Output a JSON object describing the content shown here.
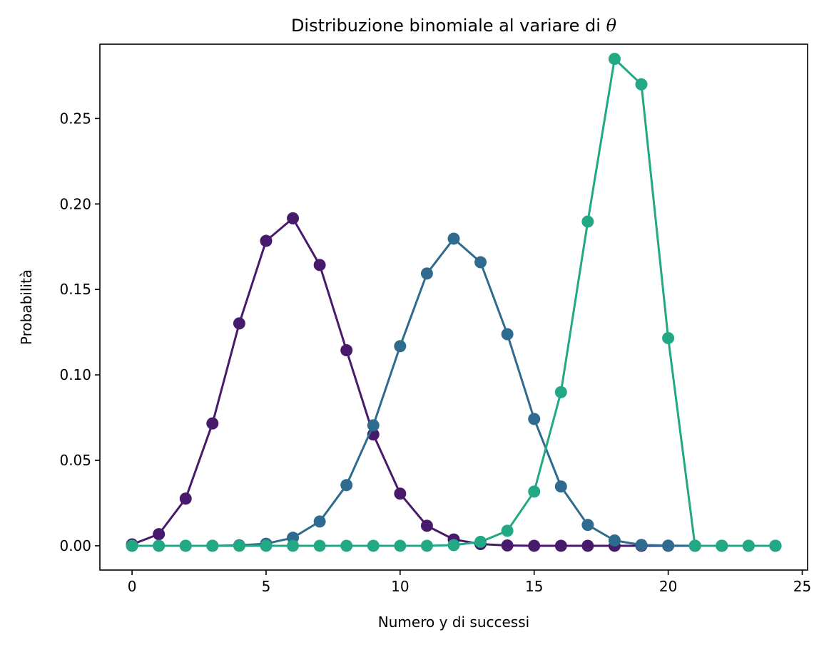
{
  "chart_data": {
    "type": "line",
    "title": "Distribuzione binomiale al variare di",
    "title_symbol": "θ",
    "xlabel": "Numero y di successi",
    "ylabel": "Probabilità",
    "xlim": [
      -1.2,
      25.2
    ],
    "ylim": [
      -0.0142,
      0.2935
    ],
    "x_ticks": [
      0,
      5,
      10,
      15,
      20,
      25
    ],
    "y_ticks": [
      0.0,
      0.05,
      0.1,
      0.15,
      0.2,
      0.25
    ],
    "x_tick_labels": [
      "0",
      "5",
      "10",
      "15",
      "20",
      "25"
    ],
    "y_tick_labels": [
      "0.00",
      "0.05",
      "0.10",
      "0.15",
      "0.20",
      "0.25"
    ],
    "grid": false,
    "legend": "none",
    "x": [
      0,
      1,
      2,
      3,
      4,
      5,
      6,
      7,
      8,
      9,
      10,
      11,
      12,
      13,
      14,
      15,
      16,
      17,
      18,
      19,
      20,
      21,
      22,
      23,
      24
    ],
    "series": [
      {
        "color": "#481a6c",
        "values": [
          0.0008,
          0.0068,
          0.0276,
          0.0716,
          0.1301,
          0.1784,
          0.1916,
          0.1643,
          0.1144,
          0.0651,
          0.0305,
          0.0117,
          0.0037,
          0.001,
          0.0002,
          0.0,
          0.0,
          0.0,
          0.0,
          0.0,
          0.0,
          0.0,
          0.0,
          0.0,
          0.0
        ]
      },
      {
        "color": "#2f6b8e",
        "values": [
          0.0,
          0.0,
          0.0,
          0.0,
          0.0003,
          0.0012,
          0.0047,
          0.0142,
          0.0355,
          0.0705,
          0.1168,
          0.1593,
          0.1797,
          0.1659,
          0.1238,
          0.0742,
          0.0347,
          0.0122,
          0.0031,
          0.0005,
          0.0001,
          0.0,
          0.0,
          0.0,
          0.0
        ]
      },
      {
        "color": "#22a884",
        "values": [
          0.0,
          0.0,
          0.0,
          0.0,
          0.0,
          0.0,
          0.0,
          0.0,
          0.0,
          0.0,
          0.0,
          0.0,
          0.0004,
          0.0023,
          0.0088,
          0.0317,
          0.0899,
          0.1897,
          0.2849,
          0.27,
          0.1215,
          0.0,
          0.0,
          0.0,
          0.0
        ]
      }
    ]
  }
}
